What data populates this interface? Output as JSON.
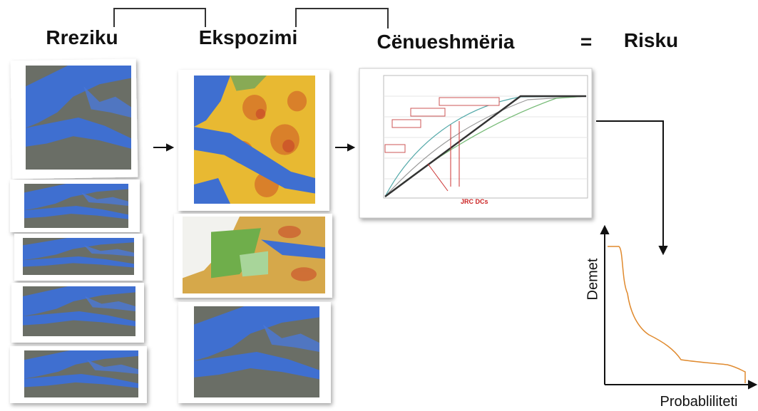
{
  "header": {
    "hazard": "Rreziku",
    "exposure": "Ekspozimi",
    "vulnerability": "Cënueshmëria",
    "equals": "=",
    "risk": "Risku"
  },
  "vulnerability_chart": {
    "annotation": "JRC DCs"
  },
  "risk_chart": {
    "y_label": "Demet",
    "x_label": "Probabliliteti"
  }
}
